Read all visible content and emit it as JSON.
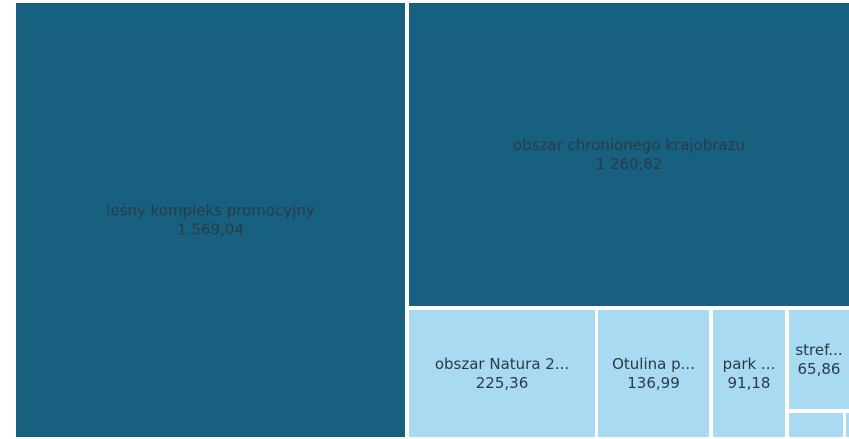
{
  "chart_data": {
    "type": "treemap",
    "categories": [
      "leśny kompleks promocyjny",
      "obszar chronionego krajobrazu",
      "obszar Natura 2...",
      "Otulina p...",
      "park ...",
      "stref..."
    ],
    "values": [
      1569.04,
      1260.82,
      225.36,
      136.99,
      91.18,
      65.86
    ],
    "value_labels": [
      "1 569,04",
      "1 260,82",
      "225,36",
      "136,99",
      "91,18",
      "65,86"
    ],
    "colors": [
      "#17607f",
      "#17607f",
      "#a8daf2",
      "#a8daf2",
      "#a8daf2",
      "#a8daf2"
    ]
  }
}
